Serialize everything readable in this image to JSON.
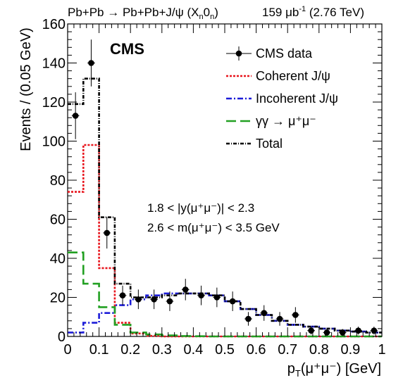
{
  "header": {
    "process": "Pb+Pb → Pb+Pb+J/ψ (X",
    "process_sub": "n",
    "process_mid": "0",
    "process_sub2": "n",
    "process_end": ")",
    "lumi": "159 μb",
    "lumi_sup": "-1",
    "energy": "(2.76 TeV)"
  },
  "experiment_label": "CMS",
  "cuts": {
    "rapidity": "1.8 < |y(μ⁺μ⁻)| < 2.3",
    "mass": "2.6 < m(μ⁺μ⁻) < 3.5 GeV"
  },
  "chart_data": {
    "type": "line",
    "title": "",
    "xlabel": "p",
    "xlabel_sub": "T",
    "xlabel_rest": "(μ⁺μ⁻) [GeV]",
    "ylabel": "Events / (0.05 GeV)",
    "xlim": [
      0,
      1
    ],
    "ylim": [
      0,
      160
    ],
    "x_ticks": [
      0,
      0.1,
      0.2,
      0.3,
      0.4,
      0.5,
      0.6,
      0.7,
      0.8,
      0.9,
      1
    ],
    "x_tick_labels": [
      "0",
      "0.1",
      "0.2",
      "0.3",
      "0.4",
      "0.5",
      "0.6",
      "0.7",
      "0.8",
      "0.9",
      "1"
    ],
    "y_ticks": [
      0,
      20,
      40,
      60,
      80,
      100,
      120,
      140,
      160
    ],
    "y_tick_labels": [
      "0",
      "20",
      "40",
      "60",
      "80",
      "100",
      "120",
      "140",
      "160"
    ],
    "bin_edges": [
      0,
      0.025,
      0.05,
      0.075,
      0.1,
      0.125,
      0.15,
      0.175,
      0.2,
      0.225,
      0.25,
      0.275,
      0.3,
      0.325,
      0.35,
      0.375,
      0.4,
      0.425,
      0.45,
      0.475,
      0.5,
      0.525,
      0.55,
      0.575,
      0.6,
      0.625,
      0.65,
      0.675,
      0.7,
      0.725,
      0.75,
      0.775,
      0.8,
      0.825,
      0.85,
      0.875,
      0.9,
      0.925,
      0.95,
      0.975,
      1
    ],
    "series": [
      {
        "name": "CMS data",
        "kind": "points",
        "color": "#000000",
        "x": [
          0.025,
          0.075,
          0.125,
          0.175,
          0.225,
          0.275,
          0.325,
          0.375,
          0.425,
          0.475,
          0.525,
          0.575,
          0.625,
          0.675,
          0.725,
          0.775,
          0.825,
          0.875,
          0.925,
          0.975
        ],
        "y": [
          113,
          140,
          53,
          21,
          19,
          19,
          18,
          24,
          21,
          20,
          18,
          9,
          12,
          9,
          11,
          3,
          2,
          2,
          3,
          3
        ],
        "err": [
          12,
          12,
          8,
          5,
          5,
          5,
          5,
          5.5,
          5,
          5,
          5,
          3.5,
          4,
          3.5,
          4,
          2,
          1.8,
          1.8,
          2,
          2
        ]
      },
      {
        "name": "Coherent J/ψ",
        "kind": "step",
        "color": "#e8141c",
        "dash": "3,2",
        "values": [
          74,
          74,
          98,
          98,
          35,
          35,
          7,
          7,
          1.5,
          1.5,
          0.3,
          0.3,
          0,
          0,
          0,
          0,
          0,
          0,
          0,
          0,
          0,
          0,
          0,
          0,
          0,
          0,
          0,
          0,
          0,
          0,
          0,
          0,
          0,
          0,
          0,
          0,
          0,
          0,
          0,
          0
        ]
      },
      {
        "name": "Incoherent J/ψ",
        "kind": "step",
        "color": "#1c1cd8",
        "dash": "8,3,2,3",
        "values": [
          2,
          2,
          7,
          7,
          12,
          12,
          16,
          16,
          19,
          19,
          21,
          21,
          22,
          22,
          22,
          22,
          22,
          22,
          21,
          21,
          18,
          18,
          14,
          14,
          11,
          11,
          8,
          8,
          6,
          6,
          5,
          5,
          4,
          4,
          3,
          3,
          2.5,
          2.5,
          2,
          2
        ]
      },
      {
        "name": "γγ → μ⁺μ⁻",
        "kind": "step",
        "color": "#22a022",
        "dash": "14,6",
        "values": [
          43,
          43,
          27,
          27,
          15,
          15,
          6,
          6,
          2,
          2,
          1,
          1,
          0.5,
          0.5,
          0.2,
          0.2,
          0.1,
          0.1,
          0,
          0,
          0,
          0,
          0,
          0,
          0,
          0,
          0,
          0,
          0,
          0,
          0,
          0,
          0,
          0,
          0,
          0,
          0,
          0,
          0,
          0
        ]
      },
      {
        "name": "Total",
        "kind": "step",
        "color": "#000000",
        "dash": "5,2,1,2",
        "values": [
          119,
          119,
          132,
          132,
          61,
          61,
          27,
          27,
          20,
          20,
          20,
          20,
          21,
          21,
          22,
          22,
          22,
          22,
          21,
          21,
          18,
          18,
          14,
          14,
          11,
          11,
          8,
          8,
          6,
          6,
          5,
          5,
          4,
          4,
          3,
          3,
          2.5,
          2.5,
          2,
          2
        ]
      }
    ],
    "legend": [
      "CMS data",
      "Coherent J/ψ",
      "Incoherent J/ψ",
      "γγ → μ⁺μ⁻",
      "Total"
    ],
    "legend_position": "top-right"
  }
}
